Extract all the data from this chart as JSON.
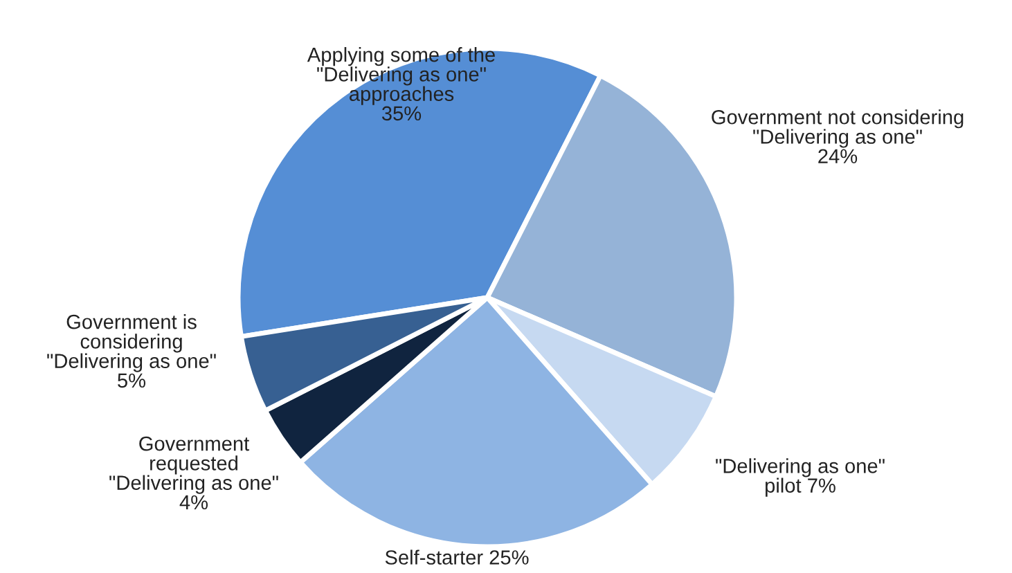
{
  "chart_data": {
    "type": "pie",
    "categories": [
      "Applying some of the\n\"Delivering as one\"\napproaches",
      "Government not considering\n\"Delivering as one\"",
      "\"Delivering as one\"\npilot",
      "Self-starter",
      "Government\nrequested\n\"Delivering as one\"",
      "Government is\nconsidering\n\"Delivering as one\""
    ],
    "values": [
      35,
      24,
      7,
      25,
      4,
      5
    ],
    "value_labels": [
      "35%",
      "24%",
      "7%",
      "25%",
      "4%",
      "5%"
    ],
    "colors": [
      "#558ed5",
      "#95b3d7",
      "#c6d9f1",
      "#8eb4e3",
      "#10243f",
      "#376092"
    ],
    "legend": false
  }
}
